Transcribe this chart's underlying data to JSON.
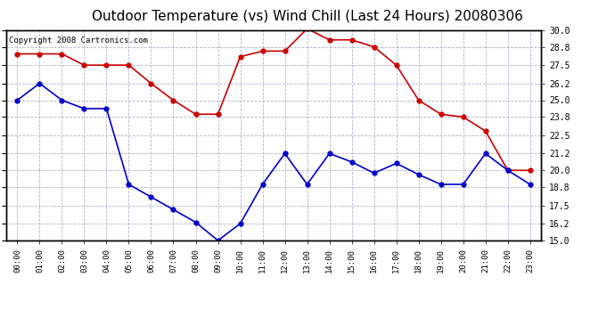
{
  "title": "Outdoor Temperature (vs) Wind Chill (Last 24 Hours) 20080306",
  "copyright": "Copyright 2008 Cartronics.com",
  "x_labels": [
    "00:00",
    "01:00",
    "02:00",
    "03:00",
    "04:00",
    "05:00",
    "06:00",
    "07:00",
    "08:00",
    "09:00",
    "10:00",
    "11:00",
    "12:00",
    "13:00",
    "14:00",
    "15:00",
    "16:00",
    "17:00",
    "18:00",
    "19:00",
    "20:00",
    "21:00",
    "22:00",
    "23:00"
  ],
  "red_data": [
    28.3,
    28.3,
    28.3,
    27.5,
    27.5,
    27.5,
    26.2,
    25.0,
    24.0,
    24.0,
    28.1,
    28.5,
    28.5,
    30.1,
    29.3,
    29.3,
    28.8,
    27.5,
    25.0,
    24.0,
    23.8,
    22.8,
    20.0,
    20.0
  ],
  "blue_data": [
    25.0,
    26.2,
    25.0,
    24.4,
    24.4,
    19.0,
    18.1,
    17.2,
    16.3,
    15.0,
    16.2,
    19.0,
    21.2,
    19.0,
    21.2,
    20.6,
    19.8,
    20.5,
    19.7,
    19.0,
    19.0,
    21.2,
    20.0,
    19.0
  ],
  "ylim": [
    15.0,
    30.0
  ],
  "yticks": [
    15.0,
    16.2,
    17.5,
    18.8,
    20.0,
    21.2,
    22.5,
    23.8,
    25.0,
    26.2,
    27.5,
    28.8,
    30.0
  ],
  "red_color": "#cc0000",
  "blue_color": "#0000cc",
  "bg_color": "#ffffff",
  "plot_bg_color": "#ffffff",
  "grid_color": "#aaaacc",
  "title_fontsize": 11,
  "copyright_fontsize": 6.5
}
